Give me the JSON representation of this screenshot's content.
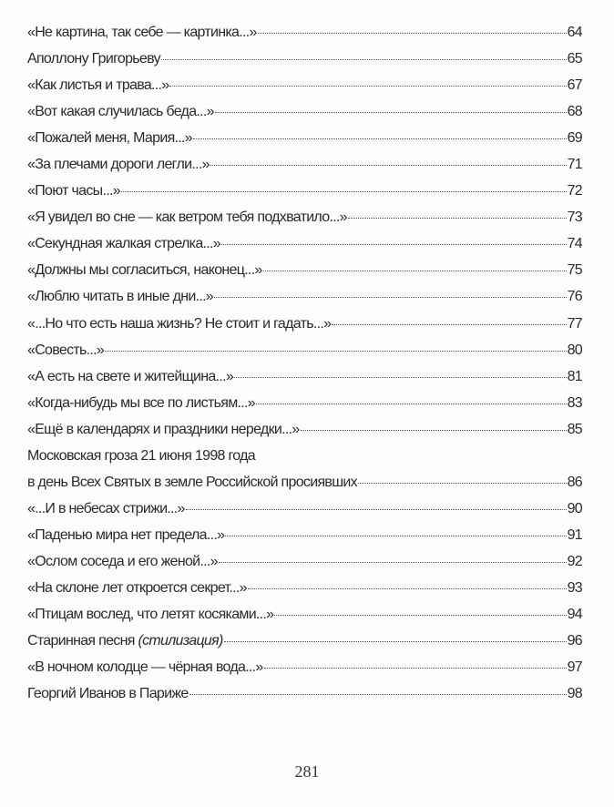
{
  "toc": {
    "entries": [
      {
        "title": "«Не картина, так себе — картинка...»",
        "page": "64"
      },
      {
        "title": "Аполлону Григорьеву",
        "page": "65"
      },
      {
        "title": "«Как листья и трава...»",
        "page": "67"
      },
      {
        "title": "«Вот какая случилась беда...»",
        "page": "68"
      },
      {
        "title": "«Пожалей меня, Мария...»",
        "page": "69"
      },
      {
        "title": "«За плечами дороги легли...»",
        "page": "71"
      },
      {
        "title": "«Поют часы...»",
        "page": "72"
      },
      {
        "title": "«Я увидел во сне — как ветром тебя подхватило...»",
        "page": "73"
      },
      {
        "title": "«Секундная жалкая стрелка...»",
        "page": "74"
      },
      {
        "title": "«Должны мы согласиться, наконец...»",
        "page": "75"
      },
      {
        "title": "«Люблю читать в иные дни...»",
        "page": "76"
      },
      {
        "title": "«...Но что есть наша жизнь? Не стоит и гадать...»",
        "page": "77"
      },
      {
        "title": "«Совесть...»",
        "page": "80"
      },
      {
        "title": "«А есть на свете и житейщина...»",
        "page": "81"
      },
      {
        "title": "«Когда-нибудь мы все по листьям...»",
        "page": "83"
      },
      {
        "title": "«Ещё в календарях и праздники нередки...»",
        "page": "85"
      },
      {
        "title_line1": "Московская гроза 21 июня 1998 года",
        "title": "в день Всех Святых в земле Российской просиявших",
        "page": "86"
      },
      {
        "title": "«...И в небесах стрижи...»",
        "page": "90"
      },
      {
        "title": "«Паденью мира нет предела...»",
        "page": "91"
      },
      {
        "title": "«Ослом соседа и его женой...»",
        "page": "92"
      },
      {
        "title": "«На склоне лет откроется секрет...»",
        "page": "93"
      },
      {
        "title": "«Птицам вослед, что летят косяками...»",
        "page": "94"
      },
      {
        "title": "Старинная песня",
        "note": "(стилизация)",
        "page": "96"
      },
      {
        "title": "«В ночном колодце — чёрная вода...»",
        "page": "97"
      },
      {
        "title": "Георгий Иванов в Париже",
        "page": "98"
      }
    ]
  },
  "folio": "281"
}
